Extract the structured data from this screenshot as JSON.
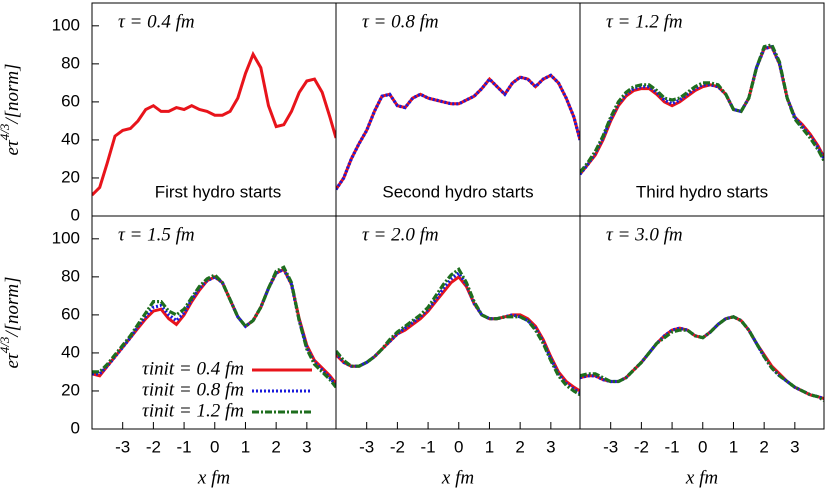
{
  "chart_data": [
    {
      "type": "line",
      "title": "τ = 0.4 fm",
      "annotation": "First hydro starts",
      "ylabel": [
        "eτ",
        "4/3",
        "/[norm]"
      ],
      "xlim": [
        -4,
        3.95
      ],
      "ylim": [
        0,
        112
      ],
      "yticks": [
        0,
        20,
        40,
        60,
        80,
        100
      ],
      "x": [
        -4,
        -3.75,
        -3.5,
        -3.25,
        -3,
        -2.75,
        -2.5,
        -2.25,
        -2,
        -1.75,
        -1.5,
        -1.25,
        -1,
        -0.75,
        -0.5,
        -0.25,
        0,
        0.25,
        0.5,
        0.75,
        1,
        1.25,
        1.5,
        1.75,
        2,
        2.25,
        2.5,
        2.75,
        3,
        3.25,
        3.5,
        3.75,
        3.95
      ],
      "series": [
        {
          "color": "#e8141b",
          "dash": "solid",
          "values": [
            11,
            15,
            28,
            42,
            45,
            46,
            50,
            56,
            58,
            55,
            55,
            57,
            56,
            58,
            56,
            55,
            53,
            53,
            55,
            62,
            75,
            85,
            78,
            58,
            47,
            48,
            55,
            65,
            71,
            72,
            65,
            52,
            41
          ]
        }
      ]
    },
    {
      "type": "line",
      "title": "τ = 0.8 fm",
      "annotation": "Second hydro starts",
      "xlim": [
        -4,
        3.95
      ],
      "ylim": [
        0,
        112
      ],
      "x": [
        -4,
        -3.75,
        -3.5,
        -3.25,
        -3,
        -2.75,
        -2.5,
        -2.25,
        -2,
        -1.75,
        -1.5,
        -1.25,
        -1,
        -0.75,
        -0.5,
        -0.25,
        0,
        0.25,
        0.5,
        0.75,
        1,
        1.25,
        1.5,
        1.75,
        2,
        2.25,
        2.5,
        2.75,
        3,
        3.25,
        3.5,
        3.75,
        3.95
      ],
      "series": [
        {
          "color": "#e8141b",
          "dash": "solid",
          "values": [
            14,
            20,
            30,
            38,
            45,
            55,
            63,
            64,
            58,
            57,
            62,
            64,
            62,
            61,
            60,
            59,
            59,
            61,
            63,
            67,
            72,
            68,
            64,
            70,
            73,
            72,
            68,
            72,
            74,
            70,
            62,
            52,
            40
          ]
        },
        {
          "color": "#1a1adc",
          "dash": "dot",
          "values": [
            14,
            20,
            30,
            38,
            45,
            55,
            63,
            64,
            58,
            57,
            62,
            64,
            62,
            61,
            60,
            59,
            59,
            61,
            63,
            67,
            72,
            68,
            64,
            70,
            73,
            72,
            68,
            72,
            74,
            70,
            62,
            52,
            40
          ]
        }
      ]
    },
    {
      "type": "line",
      "title": "τ = 1.2 fm",
      "annotation": "Third hydro starts",
      "xlim": [
        -4,
        3.95
      ],
      "ylim": [
        0,
        112
      ],
      "x": [
        -4,
        -3.75,
        -3.5,
        -3.25,
        -3,
        -2.75,
        -2.5,
        -2.25,
        -2,
        -1.75,
        -1.5,
        -1.25,
        -1,
        -0.75,
        -0.5,
        -0.25,
        0,
        0.25,
        0.5,
        0.75,
        1,
        1.25,
        1.5,
        1.75,
        2,
        2.25,
        2.5,
        2.75,
        3,
        3.25,
        3.5,
        3.75,
        3.95
      ],
      "series": [
        {
          "color": "#e8141b",
          "dash": "solid",
          "values": [
            22,
            27,
            32,
            40,
            50,
            58,
            63,
            66,
            67,
            67,
            64,
            60,
            58,
            60,
            63,
            66,
            68,
            69,
            68,
            64,
            56,
            55,
            62,
            78,
            88,
            89,
            80,
            62,
            52,
            48,
            43,
            37,
            31
          ]
        },
        {
          "color": "#1a1adc",
          "dash": "dot",
          "values": [
            22,
            27,
            33,
            41,
            51,
            59,
            64,
            67,
            68,
            68,
            65,
            61,
            59,
            61,
            64,
            67,
            69,
            69,
            68,
            64,
            56,
            55,
            62,
            78,
            88,
            89,
            80,
            62,
            52,
            47,
            42,
            36,
            30
          ]
        },
        {
          "color": "#1e6e1e",
          "dash": "dashdot",
          "values": [
            23,
            28,
            34,
            42,
            52,
            60,
            65,
            68,
            69,
            69,
            66,
            62,
            61,
            62,
            65,
            68,
            70,
            70,
            69,
            64,
            56,
            55,
            62,
            78,
            89,
            90,
            81,
            62,
            51,
            46,
            41,
            35,
            29
          ]
        }
      ]
    },
    {
      "type": "line",
      "title": "τ = 1.5 fm",
      "ylabel": [
        "eτ",
        "4/3",
        "/[norm]"
      ],
      "xlabel": "x fm",
      "legend": "lower left",
      "xlim": [
        -4,
        3.95
      ],
      "ylim": [
        0,
        112
      ],
      "yticks": [
        0,
        20,
        40,
        60,
        80,
        100
      ],
      "xticks": [
        -3,
        -2,
        -1,
        0,
        1,
        2,
        3
      ],
      "x": [
        -4,
        -3.75,
        -3.5,
        -3.25,
        -3,
        -2.75,
        -2.5,
        -2.25,
        -2,
        -1.75,
        -1.5,
        -1.25,
        -1,
        -0.75,
        -0.5,
        -0.25,
        0,
        0.25,
        0.5,
        0.75,
        1,
        1.25,
        1.5,
        1.75,
        2,
        2.25,
        2.5,
        2.75,
        3,
        3.25,
        3.5,
        3.75,
        3.95
      ],
      "series": [
        {
          "name": "τinit = 0.4 fm",
          "color": "#e8141b",
          "dash": "solid",
          "values": [
            29,
            28,
            33,
            38,
            43,
            48,
            53,
            58,
            62,
            63,
            58,
            55,
            60,
            67,
            73,
            78,
            80,
            77,
            68,
            59,
            54,
            57,
            64,
            74,
            82,
            84,
            76,
            58,
            44,
            36,
            32,
            28,
            24
          ]
        },
        {
          "name": "τinit = 0.8 fm",
          "color": "#1a1adc",
          "dash": "dot",
          "values": [
            29,
            29,
            33,
            38,
            43,
            48,
            54,
            59,
            64,
            65,
            60,
            57,
            61,
            68,
            74,
            78,
            80,
            77,
            68,
            59,
            54,
            57,
            64,
            74,
            82,
            84,
            76,
            57,
            43,
            35,
            31,
            27,
            23
          ]
        },
        {
          "name": "τinit = 1.2 fm",
          "color": "#1e6e1e",
          "dash": "dashdot",
          "values": [
            30,
            30,
            34,
            39,
            44,
            49,
            55,
            61,
            67,
            67,
            62,
            60,
            63,
            69,
            75,
            79,
            81,
            77,
            68,
            59,
            54,
            57,
            64,
            74,
            83,
            85,
            77,
            57,
            42,
            34,
            30,
            26,
            22
          ]
        }
      ]
    },
    {
      "type": "line",
      "title": "τ = 2.0 fm",
      "xlabel": "x fm",
      "xlim": [
        -4,
        3.95
      ],
      "ylim": [
        0,
        112
      ],
      "xticks": [
        -3,
        -2,
        -1,
        0,
        1,
        2,
        3
      ],
      "x": [
        -4,
        -3.75,
        -3.5,
        -3.25,
        -3,
        -2.75,
        -2.5,
        -2.25,
        -2,
        -1.75,
        -1.5,
        -1.25,
        -1,
        -0.75,
        -0.5,
        -0.25,
        0,
        0.25,
        0.5,
        0.75,
        1,
        1.25,
        1.5,
        1.75,
        2,
        2.25,
        2.5,
        2.75,
        3,
        3.25,
        3.5,
        3.75,
        3.95
      ],
      "series": [
        {
          "color": "#e8141b",
          "dash": "solid",
          "values": [
            39,
            35,
            33,
            33,
            35,
            38,
            42,
            46,
            50,
            52,
            55,
            58,
            62,
            67,
            72,
            77,
            80,
            75,
            66,
            60,
            58,
            58,
            59,
            60,
            60,
            58,
            54,
            47,
            38,
            30,
            25,
            22,
            20
          ]
        },
        {
          "color": "#1a1adc",
          "dash": "dot",
          "values": [
            40,
            35,
            33,
            33,
            35,
            38,
            42,
            46,
            50,
            53,
            56,
            59,
            63,
            68,
            74,
            79,
            82,
            76,
            66,
            60,
            58,
            58,
            59,
            60,
            59,
            57,
            53,
            46,
            37,
            29,
            24,
            21,
            19
          ]
        },
        {
          "color": "#1e6e1e",
          "dash": "dashdot",
          "values": [
            41,
            36,
            33,
            33,
            35,
            38,
            42,
            47,
            51,
            54,
            57,
            60,
            64,
            70,
            76,
            81,
            84,
            77,
            67,
            60,
            58,
            58,
            59,
            59,
            59,
            57,
            52,
            45,
            36,
            28,
            23,
            20,
            18
          ]
        }
      ]
    },
    {
      "type": "line",
      "title": "τ = 3.0 fm",
      "xlabel": "x fm",
      "xlim": [
        -4,
        3.95
      ],
      "ylim": [
        0,
        112
      ],
      "xticks": [
        -3,
        -2,
        -1,
        0,
        1,
        2,
        3
      ],
      "x": [
        -4,
        -3.75,
        -3.5,
        -3.25,
        -3,
        -2.75,
        -2.5,
        -2.25,
        -2,
        -1.75,
        -1.5,
        -1.25,
        -1,
        -0.75,
        -0.5,
        -0.25,
        0,
        0.25,
        0.5,
        0.75,
        1,
        1.25,
        1.5,
        1.75,
        2,
        2.25,
        2.5,
        2.75,
        3,
        3.25,
        3.5,
        3.75,
        3.95
      ],
      "series": [
        {
          "color": "#e8141b",
          "dash": "solid",
          "values": [
            27,
            28,
            28,
            26,
            25,
            25,
            27,
            31,
            35,
            40,
            45,
            49,
            52,
            53,
            52,
            49,
            48,
            51,
            55,
            58,
            59,
            57,
            52,
            45,
            39,
            33,
            29,
            25,
            22,
            20,
            18,
            17,
            16
          ]
        },
        {
          "color": "#1a1adc",
          "dash": "dot",
          "values": [
            27,
            28,
            28,
            26,
            25,
            25,
            27,
            31,
            35,
            40,
            45,
            49,
            52,
            53,
            52,
            49,
            48,
            51,
            55,
            58,
            59,
            57,
            52,
            45,
            38,
            32,
            28,
            25,
            22,
            20,
            18,
            17,
            16
          ]
        },
        {
          "color": "#1e6e1e",
          "dash": "dashdot",
          "values": [
            28,
            29,
            29,
            27,
            25,
            25,
            27,
            31,
            35,
            40,
            45,
            48,
            51,
            52,
            52,
            49,
            48,
            51,
            55,
            58,
            59,
            57,
            52,
            45,
            38,
            32,
            28,
            25,
            22,
            20,
            18,
            17,
            15
          ]
        }
      ]
    }
  ]
}
